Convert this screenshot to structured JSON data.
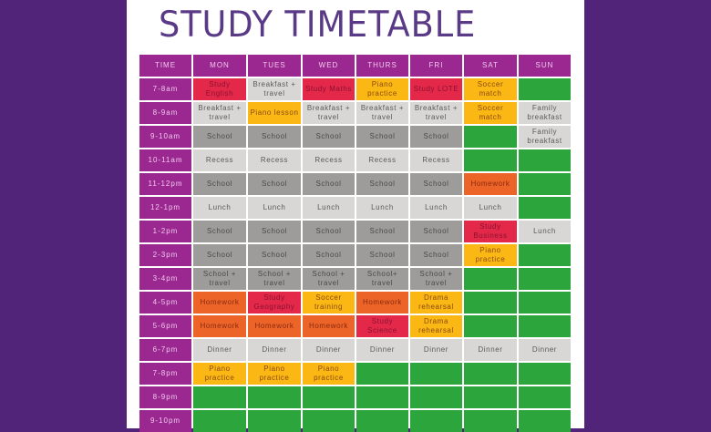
{
  "title": "STUDY TIMETABLE",
  "colors": {
    "background": "#51247a",
    "panel": "#ffffff",
    "title": "#5a3a86",
    "header": "#9b2891",
    "school": "#9e9c9b",
    "routine": "#d9d7d5",
    "study": "#e3284a",
    "homework": "#ec6428",
    "activity": "#fbb714",
    "free": "#2ca53d"
  },
  "headers": [
    "TIME",
    "MON",
    "TUES",
    "WED",
    "THURS",
    "FRI",
    "SAT",
    "SUN"
  ],
  "rows": [
    {
      "time": "7-8am",
      "cells": [
        {
          "text": "Study\nEnglish",
          "type": "red"
        },
        {
          "text": "Breakfast +\ntravel",
          "type": "light"
        },
        {
          "text": "Study Maths",
          "type": "red"
        },
        {
          "text": "Piano\npractice",
          "type": "yellow"
        },
        {
          "text": "Study LOTE",
          "type": "red"
        },
        {
          "text": "Soccer\nmatch",
          "type": "yellow"
        },
        {
          "text": "",
          "type": "green"
        }
      ]
    },
    {
      "time": "8-9am",
      "cells": [
        {
          "text": "Breakfast +\ntravel",
          "type": "light"
        },
        {
          "text": "Piano lesson",
          "type": "yellow"
        },
        {
          "text": "Breakfast +\ntravel",
          "type": "light"
        },
        {
          "text": "Breakfast +\ntravel",
          "type": "light"
        },
        {
          "text": "Breakfast +\ntravel",
          "type": "light"
        },
        {
          "text": "Soccer\nmatch",
          "type": "yellow"
        },
        {
          "text": "Family\nbreakfast",
          "type": "light"
        }
      ]
    },
    {
      "time": "9-10am",
      "cells": [
        {
          "text": "School",
          "type": "school"
        },
        {
          "text": "School",
          "type": "school"
        },
        {
          "text": "School",
          "type": "school"
        },
        {
          "text": "School",
          "type": "school"
        },
        {
          "text": "School",
          "type": "school"
        },
        {
          "text": "",
          "type": "green"
        },
        {
          "text": "Family\nbreakfast",
          "type": "light"
        }
      ]
    },
    {
      "time": "10-11am",
      "cells": [
        {
          "text": "Recess",
          "type": "light"
        },
        {
          "text": "Recess",
          "type": "light"
        },
        {
          "text": "Recess",
          "type": "light"
        },
        {
          "text": "Recess",
          "type": "light"
        },
        {
          "text": "Recess",
          "type": "light"
        },
        {
          "text": "",
          "type": "green"
        },
        {
          "text": "",
          "type": "green"
        }
      ]
    },
    {
      "time": "11-12pm",
      "cells": [
        {
          "text": "School",
          "type": "school"
        },
        {
          "text": "School",
          "type": "school"
        },
        {
          "text": "School",
          "type": "school"
        },
        {
          "text": "School",
          "type": "school"
        },
        {
          "text": "School",
          "type": "school"
        },
        {
          "text": "Homework",
          "type": "orange"
        },
        {
          "text": "",
          "type": "green"
        }
      ]
    },
    {
      "time": "12-1pm",
      "cells": [
        {
          "text": "Lunch",
          "type": "light"
        },
        {
          "text": "Lunch",
          "type": "light"
        },
        {
          "text": "Lunch",
          "type": "light"
        },
        {
          "text": "Lunch",
          "type": "light"
        },
        {
          "text": "Lunch",
          "type": "light"
        },
        {
          "text": "Lunch",
          "type": "light"
        },
        {
          "text": "",
          "type": "green"
        }
      ]
    },
    {
      "time": "1-2pm",
      "cells": [
        {
          "text": "School",
          "type": "school"
        },
        {
          "text": "School",
          "type": "school"
        },
        {
          "text": "School",
          "type": "school"
        },
        {
          "text": "School",
          "type": "school"
        },
        {
          "text": "School",
          "type": "school"
        },
        {
          "text": "Study\nBusiness",
          "type": "red"
        },
        {
          "text": "Lunch",
          "type": "light"
        }
      ]
    },
    {
      "time": "2-3pm",
      "cells": [
        {
          "text": "School",
          "type": "school"
        },
        {
          "text": "School",
          "type": "school"
        },
        {
          "text": "School",
          "type": "school"
        },
        {
          "text": "School",
          "type": "school"
        },
        {
          "text": "School",
          "type": "school"
        },
        {
          "text": "Piano\npractice",
          "type": "yellow"
        },
        {
          "text": "",
          "type": "green"
        }
      ]
    },
    {
      "time": "3-4pm",
      "cells": [
        {
          "text": "School +\ntravel",
          "type": "school"
        },
        {
          "text": "School +\ntravel",
          "type": "school"
        },
        {
          "text": "School +\ntravel",
          "type": "school"
        },
        {
          "text": "School+\ntravel",
          "type": "school"
        },
        {
          "text": "School +\ntravel",
          "type": "school"
        },
        {
          "text": "",
          "type": "green"
        },
        {
          "text": "",
          "type": "green"
        }
      ]
    },
    {
      "time": "4-5pm",
      "cells": [
        {
          "text": "Homework",
          "type": "orange"
        },
        {
          "text": "Study\nGeography",
          "type": "red"
        },
        {
          "text": "Soccer\ntraining",
          "type": "yellow"
        },
        {
          "text": "Homework",
          "type": "orange"
        },
        {
          "text": "Drama\nrehearsal",
          "type": "yellow"
        },
        {
          "text": "",
          "type": "green"
        },
        {
          "text": "",
          "type": "green"
        }
      ]
    },
    {
      "time": "5-6pm",
      "cells": [
        {
          "text": "Homework",
          "type": "orange"
        },
        {
          "text": "Homework",
          "type": "orange"
        },
        {
          "text": "Homework",
          "type": "orange"
        },
        {
          "text": "Study\nScience",
          "type": "red"
        },
        {
          "text": "Drama\nrehearsal",
          "type": "yellow"
        },
        {
          "text": "",
          "type": "green"
        },
        {
          "text": "",
          "type": "green"
        }
      ]
    },
    {
      "time": "6-7pm",
      "cells": [
        {
          "text": "Dinner",
          "type": "light"
        },
        {
          "text": "Dinner",
          "type": "light"
        },
        {
          "text": "Dinner",
          "type": "light"
        },
        {
          "text": "Dinner",
          "type": "light"
        },
        {
          "text": "Dinner",
          "type": "light"
        },
        {
          "text": "Dinner",
          "type": "light"
        },
        {
          "text": "Dinner",
          "type": "light"
        }
      ]
    },
    {
      "time": "7-8pm",
      "cells": [
        {
          "text": "Piano\npractice",
          "type": "yellow"
        },
        {
          "text": "Piano\npractice",
          "type": "yellow"
        },
        {
          "text": "Piano\npractice",
          "type": "yellow"
        },
        {
          "text": "",
          "type": "green"
        },
        {
          "text": "",
          "type": "green"
        },
        {
          "text": "",
          "type": "green"
        },
        {
          "text": "",
          "type": "green"
        }
      ]
    },
    {
      "time": "8-9pm",
      "cells": [
        {
          "text": "",
          "type": "green"
        },
        {
          "text": "",
          "type": "green"
        },
        {
          "text": "",
          "type": "green"
        },
        {
          "text": "",
          "type": "green"
        },
        {
          "text": "",
          "type": "green"
        },
        {
          "text": "",
          "type": "green"
        },
        {
          "text": "",
          "type": "green"
        }
      ]
    },
    {
      "time": "9-10pm",
      "cells": [
        {
          "text": "",
          "type": "green"
        },
        {
          "text": "",
          "type": "green"
        },
        {
          "text": "",
          "type": "green"
        },
        {
          "text": "",
          "type": "green"
        },
        {
          "text": "",
          "type": "green"
        },
        {
          "text": "",
          "type": "green"
        },
        {
          "text": "",
          "type": "green"
        }
      ]
    }
  ]
}
